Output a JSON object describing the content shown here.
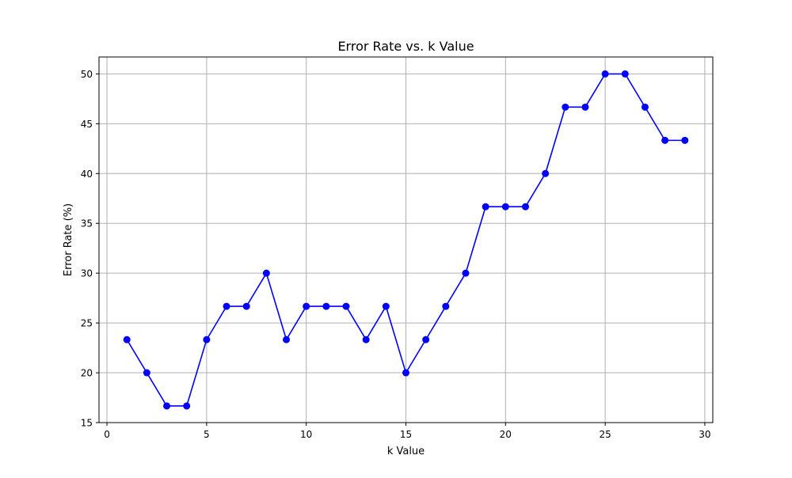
{
  "chart_data": {
    "type": "line",
    "title": "Error Rate vs. k Value",
    "xlabel": "k Value",
    "ylabel": "Error Rate (%)",
    "xlim": [
      -0.4,
      30.4
    ],
    "ylim": [
      15.0,
      51.7
    ],
    "xticks": [
      0,
      5,
      10,
      15,
      20,
      25,
      30
    ],
    "yticks": [
      15,
      20,
      25,
      30,
      35,
      40,
      45,
      50
    ],
    "grid": true,
    "legend": "none",
    "series": [
      {
        "color": "#0000ff",
        "marker": "circle",
        "x": [
          1,
          2,
          3,
          4,
          5,
          6,
          7,
          8,
          9,
          10,
          11,
          12,
          13,
          14,
          15,
          16,
          17,
          18,
          19,
          20,
          21,
          22,
          23,
          24,
          25,
          26,
          27,
          28,
          29
        ],
        "y": [
          23.33,
          20.0,
          16.67,
          16.67,
          23.33,
          26.67,
          26.67,
          30.0,
          23.33,
          26.67,
          26.67,
          26.67,
          23.33,
          26.67,
          20.0,
          23.33,
          26.67,
          30.0,
          36.67,
          36.67,
          36.67,
          40.0,
          46.67,
          46.67,
          50.0,
          50.0,
          46.67,
          43.33,
          43.33
        ]
      }
    ]
  }
}
